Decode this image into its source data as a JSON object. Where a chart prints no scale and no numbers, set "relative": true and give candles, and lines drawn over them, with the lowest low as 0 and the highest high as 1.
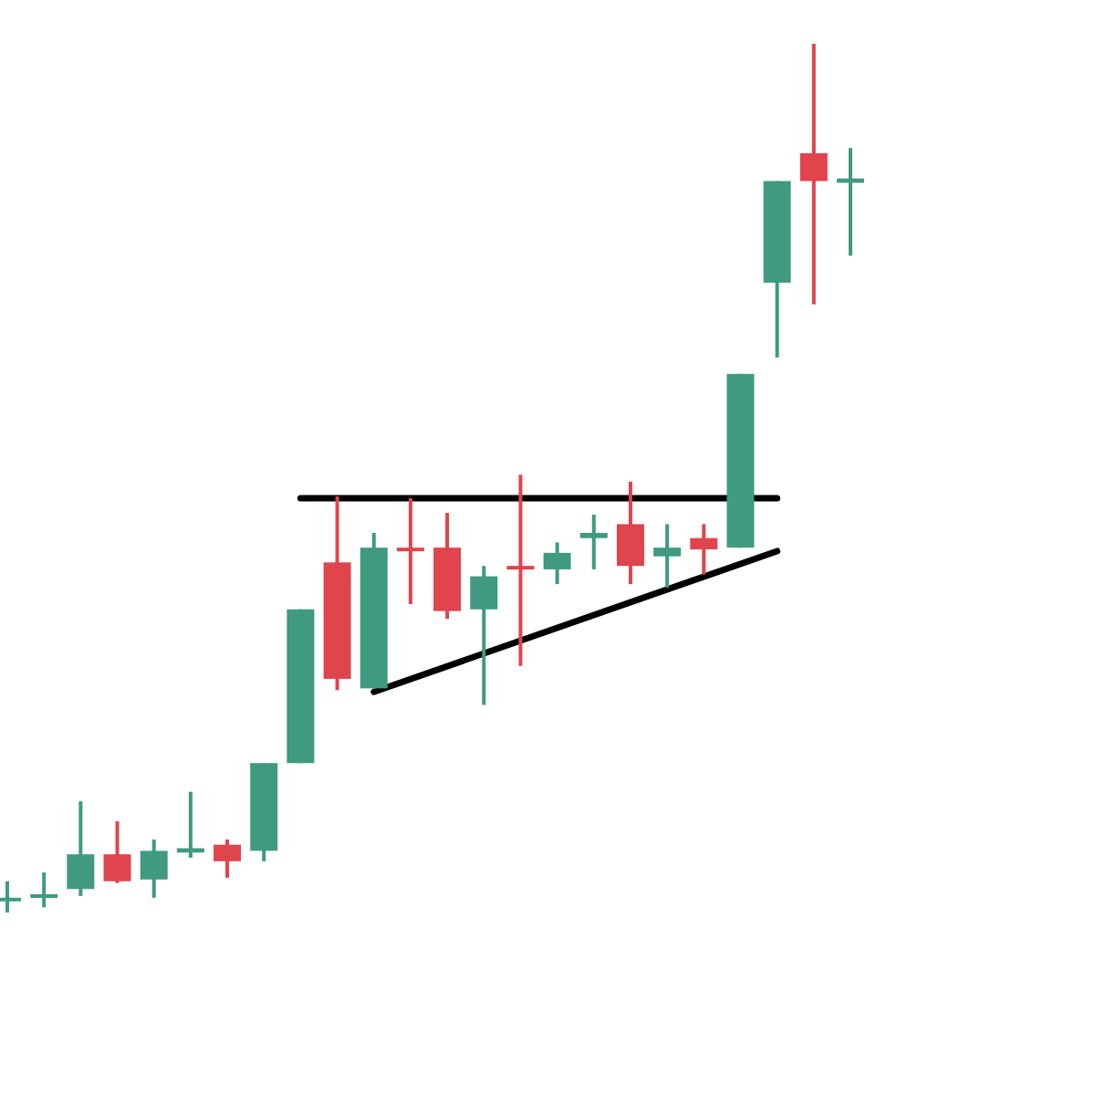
{
  "chart_data": {
    "type": "candlestick",
    "relative": true,
    "categories": [
      null,
      null,
      null,
      null,
      null,
      null,
      null,
      null,
      null,
      null,
      null,
      null,
      null,
      null,
      null,
      null,
      null,
      null,
      null,
      null,
      null,
      null,
      null,
      null
    ],
    "ohlc": [
      [
        0.013,
        0.036,
        0,
        0.017
      ],
      [
        0.017,
        0.046,
        0.006,
        0.021
      ],
      [
        0.027,
        0.128,
        0.019,
        0.067
      ],
      [
        0.067,
        0.105,
        0.034,
        0.036
      ],
      [
        0.038,
        0.084,
        0.017,
        0.071
      ],
      [
        0.069,
        0.139,
        0.063,
        0.074
      ],
      [
        0.078,
        0.084,
        0.04,
        0.059
      ],
      [
        0.071,
        0.172,
        0.059,
        0.172
      ],
      [
        0.172,
        0.349,
        0.172,
        0.349
      ],
      [
        0.403,
        0.479,
        0.256,
        0.269
      ],
      [
        0.258,
        0.437,
        0.258,
        0.42
      ],
      [
        0.42,
        0.477,
        0.355,
        0.416
      ],
      [
        0.42,
        0.46,
        0.338,
        0.347
      ],
      [
        0.349,
        0.399,
        0.239,
        0.387
      ],
      [
        0.399,
        0.504,
        0.284,
        0.395
      ],
      [
        0.395,
        0.426,
        0.378,
        0.414
      ],
      [
        0.431,
        0.458,
        0.395,
        0.437
      ],
      [
        0.447,
        0.496,
        0.378,
        0.399
      ],
      [
        0.41,
        0.447,
        0.374,
        0.42
      ],
      [
        0.431,
        0.447,
        0.389,
        0.418
      ],
      [
        0.42,
        0.62,
        0.42,
        0.62
      ],
      [
        0.725,
        0.842,
        0.639,
        0.842
      ],
      [
        0.874,
        1,
        0.7,
        0.842
      ],
      [
        0.84,
        0.88,
        0.756,
        0.845
      ]
    ],
    "colors": [
      "#3f9a80",
      "#3f9a80",
      "#3f9a80",
      "#e0444c",
      "#3f9a80",
      "#3f9a80",
      "#e0444c",
      "#3f9a80",
      "#3f9a80",
      "#e0444c",
      "#3f9a80",
      "#e0444c",
      "#e0444c",
      "#3f9a80",
      "#e0444c",
      "#3f9a80",
      "#3f9a80",
      "#e0444c",
      "#3f9a80",
      "#e0444c",
      "#3f9a80",
      "#3f9a80",
      "#e0444c",
      "#3f9a80"
    ],
    "series": [
      {
        "type": "line",
        "color": "#000000",
        "values": [
          null,
          null,
          null,
          null,
          null,
          null,
          null,
          null,
          0.477,
          null,
          null,
          null,
          null,
          null,
          null,
          null,
          null,
          null,
          null,
          null,
          null,
          0.477,
          null,
          null
        ]
      },
      {
        "type": "line",
        "color": "#000000",
        "values": [
          null,
          null,
          null,
          null,
          null,
          null,
          null,
          null,
          null,
          null,
          0.254,
          null,
          null,
          null,
          null,
          null,
          null,
          null,
          null,
          null,
          null,
          0.416,
          null,
          null
        ]
      }
    ]
  }
}
